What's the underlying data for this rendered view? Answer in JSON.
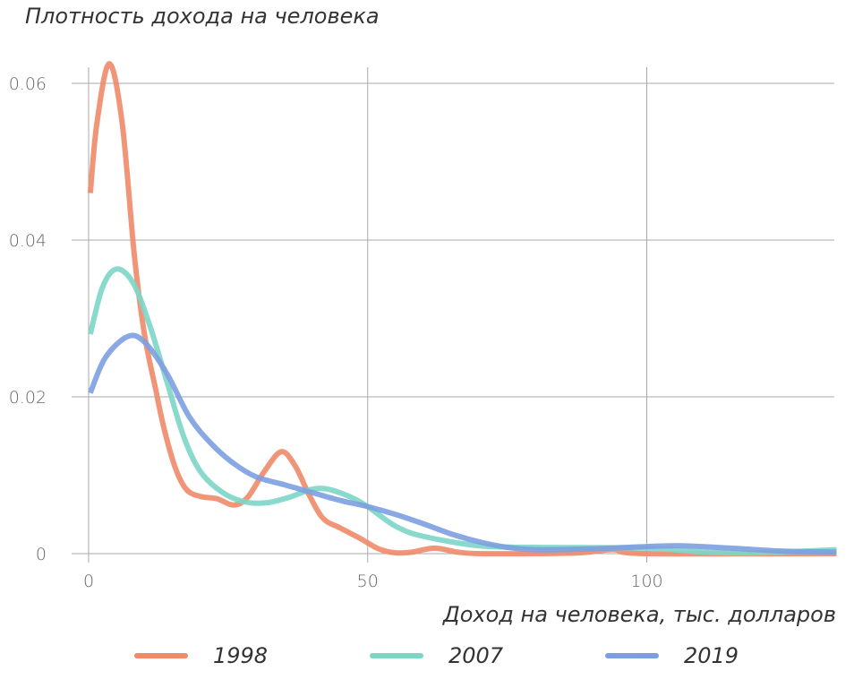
{
  "chart_data": {
    "type": "line",
    "title": "Плотность дохода на человека",
    "xlabel": "Доход на человека, тыс. долларов",
    "ylabel": "",
    "xlim": [
      -2,
      134
    ],
    "ylim": [
      0,
      0.063
    ],
    "x_ticks": [
      {
        "v": 0,
        "label": "0"
      },
      {
        "v": 50,
        "label": "50"
      },
      {
        "v": 100,
        "label": "100"
      }
    ],
    "y_ticks": [
      {
        "v": 0,
        "label": "0"
      },
      {
        "v": 0.02,
        "label": "0.02"
      },
      {
        "v": 0.04,
        "label": "0.04"
      },
      {
        "v": 0.06,
        "label": "0.06"
      }
    ],
    "grid": true,
    "legend_position": "bottom",
    "series": [
      {
        "name": "1998",
        "color": "#f08a69",
        "points": [
          [
            0.3,
            0.046
          ],
          [
            1.5,
            0.055
          ],
          [
            3.7,
            0.0625
          ],
          [
            6,
            0.055
          ],
          [
            8.2,
            0.038
          ],
          [
            10,
            0.028
          ],
          [
            12,
            0.021
          ],
          [
            13.5,
            0.016
          ],
          [
            15.5,
            0.011
          ],
          [
            17.5,
            0.0082
          ],
          [
            20,
            0.0073
          ],
          [
            23,
            0.007
          ],
          [
            26,
            0.0062
          ],
          [
            28.5,
            0.0072
          ],
          [
            31.5,
            0.0105
          ],
          [
            34.5,
            0.013
          ],
          [
            37,
            0.0112
          ],
          [
            39.5,
            0.0075
          ],
          [
            42,
            0.0045
          ],
          [
            45,
            0.0033
          ],
          [
            48.5,
            0.002
          ],
          [
            52,
            0.0006
          ],
          [
            55,
            0.0001
          ],
          [
            58,
            0.0002
          ],
          [
            62,
            0.0007
          ],
          [
            66,
            0.0002
          ],
          [
            70,
            0
          ],
          [
            80,
            0
          ],
          [
            88,
            0.0001
          ],
          [
            94,
            0.0005
          ],
          [
            100,
            0
          ],
          [
            134,
            0
          ]
        ]
      },
      {
        "name": "2007",
        "color": "#7cd6c6",
        "points": [
          [
            0.3,
            0.028
          ],
          [
            2.5,
            0.034
          ],
          [
            5,
            0.0363
          ],
          [
            8,
            0.0345
          ],
          [
            11,
            0.029
          ],
          [
            14,
            0.022
          ],
          [
            17,
            0.015
          ],
          [
            20,
            0.0105
          ],
          [
            24,
            0.0078
          ],
          [
            28,
            0.0066
          ],
          [
            32,
            0.0065
          ],
          [
            36,
            0.0072
          ],
          [
            40,
            0.0082
          ],
          [
            43,
            0.0082
          ],
          [
            47,
            0.0072
          ],
          [
            50,
            0.006
          ],
          [
            55,
            0.0035
          ],
          [
            60,
            0.0022
          ],
          [
            70,
            0.001
          ],
          [
            80,
            0.0008
          ],
          [
            100,
            0.0007
          ],
          [
            110,
            0.0002
          ],
          [
            120,
            0.0001
          ],
          [
            134,
            0.0005
          ]
        ]
      },
      {
        "name": "2019",
        "color": "#7d9ee0",
        "points": [
          [
            0.3,
            0.0205
          ],
          [
            3,
            0.025
          ],
          [
            7,
            0.0277
          ],
          [
            10,
            0.027
          ],
          [
            14,
            0.023
          ],
          [
            18,
            0.0175
          ],
          [
            22,
            0.014
          ],
          [
            26,
            0.0115
          ],
          [
            30,
            0.0098
          ],
          [
            35,
            0.0088
          ],
          [
            40,
            0.0078
          ],
          [
            45,
            0.0068
          ],
          [
            50,
            0.006
          ],
          [
            55,
            0.005
          ],
          [
            60,
            0.0038
          ],
          [
            65,
            0.0025
          ],
          [
            70,
            0.0015
          ],
          [
            75,
            0.0008
          ],
          [
            80,
            0.0005
          ],
          [
            90,
            0.0006
          ],
          [
            100,
            0.0009
          ],
          [
            106,
            0.001
          ],
          [
            115,
            0.0007
          ],
          [
            125,
            0.0003
          ],
          [
            134,
            0.0002
          ]
        ]
      }
    ]
  }
}
